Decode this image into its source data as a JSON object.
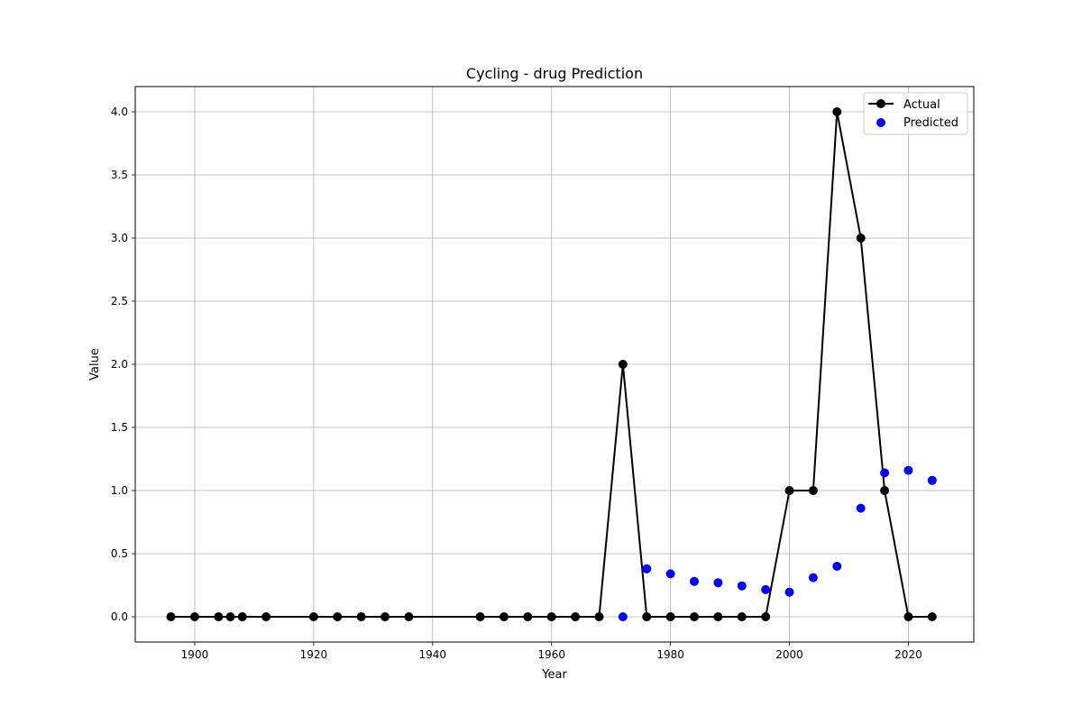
{
  "chart_data": {
    "type": "line",
    "title": "Cycling - drug Prediction",
    "xlabel": "Year",
    "ylabel": "Value",
    "xlim": [
      1890,
      2031
    ],
    "ylim": [
      -0.2,
      4.2
    ],
    "x_ticks": [
      1900,
      1920,
      1940,
      1960,
      1980,
      2000,
      2020
    ],
    "y_ticks": [
      0.0,
      0.5,
      1.0,
      1.5,
      2.0,
      2.5,
      3.0,
      3.5,
      4.0
    ],
    "x_tick_labels": [
      "1900",
      "1920",
      "1940",
      "1960",
      "1980",
      "2000",
      "2020"
    ],
    "y_tick_labels": [
      "0.0",
      "0.5",
      "1.0",
      "1.5",
      "2.0",
      "2.5",
      "3.0",
      "3.5",
      "4.0"
    ],
    "grid": true,
    "legend_position": "top-right",
    "series": [
      {
        "name": "Actual",
        "style": "line-with-markers",
        "color": "#000000",
        "x": [
          1896,
          1900,
          1904,
          1906,
          1908,
          1912,
          1920,
          1924,
          1928,
          1932,
          1936,
          1948,
          1952,
          1956,
          1960,
          1964,
          1968,
          1972,
          1976,
          1980,
          1984,
          1988,
          1992,
          1996,
          2000,
          2004,
          2008,
          2012,
          2016,
          2020,
          2024
        ],
        "y": [
          0,
          0,
          0,
          0,
          0,
          0,
          0,
          0,
          0,
          0,
          0,
          0,
          0,
          0,
          0,
          0,
          0,
          2,
          0,
          0,
          0,
          0,
          0,
          0,
          1,
          1,
          4,
          3,
          1,
          0,
          0
        ]
      },
      {
        "name": "Predicted",
        "style": "scatter",
        "color": "#0000ff",
        "x": [
          1972,
          1976,
          1980,
          1984,
          1988,
          1992,
          1996,
          2000,
          2004,
          2008,
          2012,
          2016,
          2020,
          2024
        ],
        "y": [
          0.0,
          0.38,
          0.34,
          0.28,
          0.27,
          0.245,
          0.215,
          0.195,
          0.31,
          0.4,
          0.86,
          1.14,
          1.16,
          1.08
        ]
      }
    ]
  }
}
